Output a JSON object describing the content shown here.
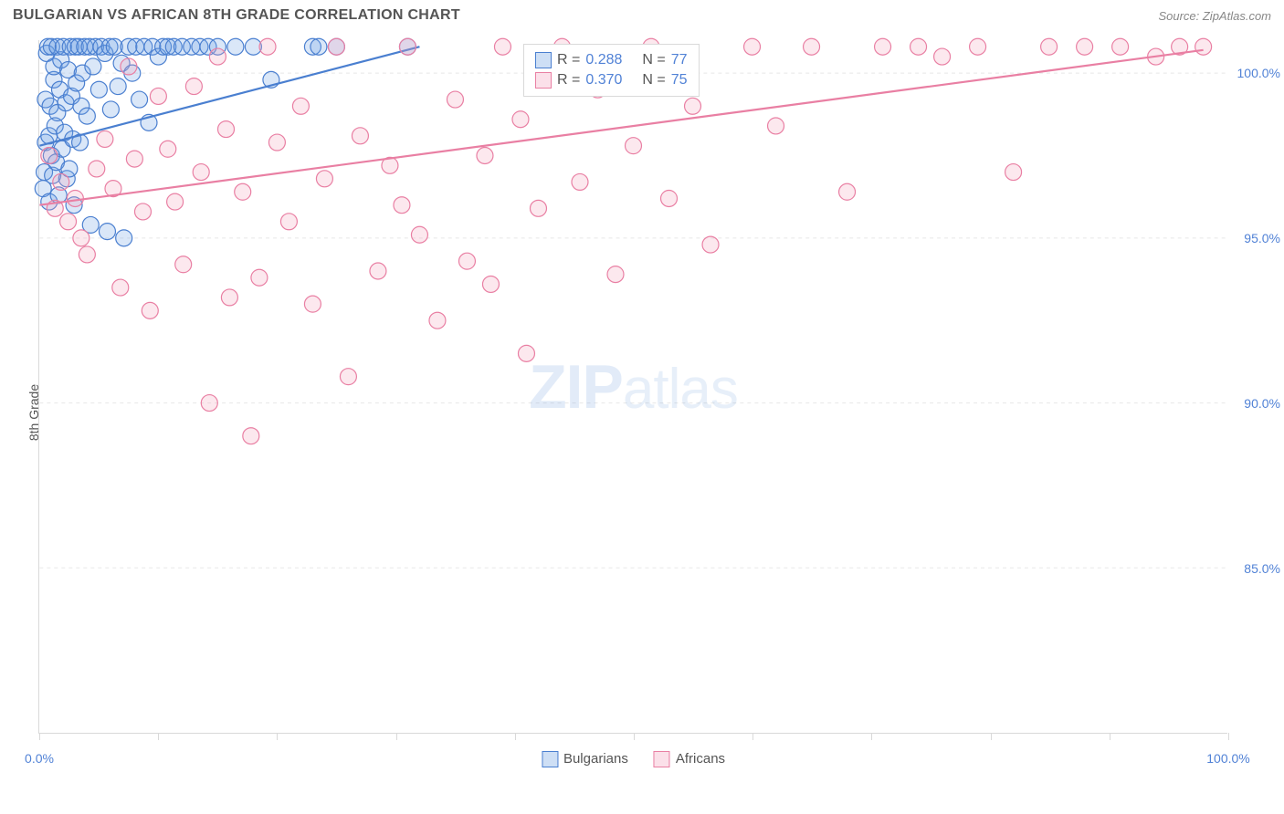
{
  "header": {
    "title": "BULGARIAN VS AFRICAN 8TH GRADE CORRELATION CHART",
    "source": "Source: ZipAtlas.com"
  },
  "watermark": {
    "zip": "ZIP",
    "atlas": "atlas"
  },
  "y_axis_label": "8th Grade",
  "chart": {
    "type": "scatter",
    "xlim": [
      0,
      100
    ],
    "ylim": [
      80,
      101
    ],
    "x_ticks": [
      0,
      10,
      20,
      30,
      40,
      50,
      60,
      70,
      80,
      90,
      100
    ],
    "x_tick_labels_shown": {
      "0": "0.0%",
      "100": "100.0%"
    },
    "y_ticks": [
      85,
      90,
      95,
      100
    ],
    "y_tick_labels": {
      "85": "85.0%",
      "90": "90.0%",
      "95": "95.0%",
      "100": "100.0%"
    },
    "grid_color": "#e8e8e8",
    "grid_dash": "4,4",
    "background_color": "#ffffff",
    "marker_radius": 9,
    "marker_stroke_width": 1.2,
    "marker_fill_opacity": 0.25,
    "line_width": 2.2
  },
  "series": [
    {
      "id": "bulgarians",
      "label": "Bulgarians",
      "color_stroke": "#4a7fd0",
      "color_fill": "#6b9fe2",
      "R": "0.288",
      "N": "77",
      "trend": {
        "x1": 0,
        "y1": 97.8,
        "x2": 32,
        "y2": 100.8
      },
      "points": [
        [
          0.3,
          96.5
        ],
        [
          0.4,
          97.0
        ],
        [
          0.5,
          97.9
        ],
        [
          0.5,
          99.2
        ],
        [
          0.6,
          100.6
        ],
        [
          0.7,
          100.8
        ],
        [
          0.8,
          96.1
        ],
        [
          0.8,
          98.1
        ],
        [
          0.9,
          99.0
        ],
        [
          1.0,
          100.8
        ],
        [
          1.0,
          97.5
        ],
        [
          1.1,
          96.9
        ],
        [
          1.2,
          99.8
        ],
        [
          1.2,
          100.2
        ],
        [
          1.3,
          98.4
        ],
        [
          1.4,
          97.3
        ],
        [
          1.5,
          100.8
        ],
        [
          1.5,
          98.8
        ],
        [
          1.6,
          96.3
        ],
        [
          1.7,
          99.5
        ],
        [
          1.8,
          100.4
        ],
        [
          1.9,
          97.7
        ],
        [
          2.0,
          100.8
        ],
        [
          2.1,
          98.2
        ],
        [
          2.2,
          99.1
        ],
        [
          2.3,
          96.8
        ],
        [
          2.4,
          100.1
        ],
        [
          2.5,
          97.1
        ],
        [
          2.6,
          100.8
        ],
        [
          2.7,
          99.3
        ],
        [
          2.8,
          98.0
        ],
        [
          2.9,
          96.0
        ],
        [
          3.0,
          100.8
        ],
        [
          3.1,
          99.7
        ],
        [
          3.3,
          100.8
        ],
        [
          3.4,
          97.9
        ],
        [
          3.5,
          99.0
        ],
        [
          3.6,
          100.0
        ],
        [
          3.8,
          100.8
        ],
        [
          4.0,
          98.7
        ],
        [
          4.2,
          100.8
        ],
        [
          4.3,
          95.4
        ],
        [
          4.5,
          100.2
        ],
        [
          4.7,
          100.8
        ],
        [
          5.0,
          99.5
        ],
        [
          5.2,
          100.8
        ],
        [
          5.5,
          100.6
        ],
        [
          5.7,
          95.2
        ],
        [
          5.9,
          100.8
        ],
        [
          6.0,
          98.9
        ],
        [
          6.3,
          100.8
        ],
        [
          6.6,
          99.6
        ],
        [
          6.9,
          100.3
        ],
        [
          7.1,
          95.0
        ],
        [
          7.5,
          100.8
        ],
        [
          7.8,
          100.0
        ],
        [
          8.1,
          100.8
        ],
        [
          8.4,
          99.2
        ],
        [
          8.8,
          100.8
        ],
        [
          9.2,
          98.5
        ],
        [
          9.5,
          100.8
        ],
        [
          10.0,
          100.5
        ],
        [
          10.4,
          100.8
        ],
        [
          10.8,
          100.8
        ],
        [
          11.3,
          100.8
        ],
        [
          12.0,
          100.8
        ],
        [
          12.8,
          100.8
        ],
        [
          13.5,
          100.8
        ],
        [
          14.2,
          100.8
        ],
        [
          15.0,
          100.8
        ],
        [
          16.5,
          100.8
        ],
        [
          18.0,
          100.8
        ],
        [
          19.5,
          99.8
        ],
        [
          23.0,
          100.8
        ],
        [
          23.5,
          100.8
        ],
        [
          25.0,
          100.8
        ],
        [
          31.0,
          100.8
        ]
      ]
    },
    {
      "id": "africans",
      "label": "Africans",
      "color_stroke": "#e97fa3",
      "color_fill": "#f3a3bc",
      "R": "0.370",
      "N": "75",
      "trend": {
        "x1": 0,
        "y1": 96.0,
        "x2": 98,
        "y2": 100.7
      },
      "points": [
        [
          0.8,
          97.5
        ],
        [
          1.3,
          95.9
        ],
        [
          1.8,
          96.7
        ],
        [
          2.4,
          95.5
        ],
        [
          3.0,
          96.2
        ],
        [
          3.5,
          95.0
        ],
        [
          4.0,
          94.5
        ],
        [
          4.8,
          97.1
        ],
        [
          5.5,
          98.0
        ],
        [
          6.2,
          96.5
        ],
        [
          6.8,
          93.5
        ],
        [
          7.5,
          100.2
        ],
        [
          8.0,
          97.4
        ],
        [
          8.7,
          95.8
        ],
        [
          9.3,
          92.8
        ],
        [
          10.0,
          99.3
        ],
        [
          10.8,
          97.7
        ],
        [
          11.4,
          96.1
        ],
        [
          12.1,
          94.2
        ],
        [
          13.0,
          99.6
        ],
        [
          13.6,
          97.0
        ],
        [
          14.3,
          90.0
        ],
        [
          15.0,
          100.5
        ],
        [
          15.7,
          98.3
        ],
        [
          16.0,
          93.2
        ],
        [
          17.1,
          96.4
        ],
        [
          17.8,
          89.0
        ],
        [
          18.5,
          93.8
        ],
        [
          19.2,
          100.8
        ],
        [
          20.0,
          97.9
        ],
        [
          21.0,
          95.5
        ],
        [
          22.0,
          99.0
        ],
        [
          23.0,
          93.0
        ],
        [
          24.0,
          96.8
        ],
        [
          25.0,
          100.8
        ],
        [
          26.0,
          90.8
        ],
        [
          27.0,
          98.1
        ],
        [
          28.5,
          94.0
        ],
        [
          29.5,
          97.2
        ],
        [
          30.5,
          96.0
        ],
        [
          31.0,
          100.8
        ],
        [
          32.0,
          95.1
        ],
        [
          33.5,
          92.5
        ],
        [
          35.0,
          99.2
        ],
        [
          36.0,
          94.3
        ],
        [
          37.5,
          97.5
        ],
        [
          38.0,
          93.6
        ],
        [
          39.0,
          100.8
        ],
        [
          40.5,
          98.6
        ],
        [
          41.0,
          91.5
        ],
        [
          42.0,
          95.9
        ],
        [
          44.0,
          100.8
        ],
        [
          45.5,
          96.7
        ],
        [
          47.0,
          99.5
        ],
        [
          48.5,
          93.9
        ],
        [
          50.0,
          97.8
        ],
        [
          51.5,
          100.8
        ],
        [
          53.0,
          96.2
        ],
        [
          55.0,
          99.0
        ],
        [
          56.5,
          94.8
        ],
        [
          60.0,
          100.8
        ],
        [
          62.0,
          98.4
        ],
        [
          65.0,
          100.8
        ],
        [
          68.0,
          96.4
        ],
        [
          71.0,
          100.8
        ],
        [
          74.0,
          100.8
        ],
        [
          76.0,
          100.5
        ],
        [
          79.0,
          100.8
        ],
        [
          82.0,
          97.0
        ],
        [
          85.0,
          100.8
        ],
        [
          88.0,
          100.8
        ],
        [
          91.0,
          100.8
        ],
        [
          94.0,
          100.5
        ],
        [
          96.0,
          100.8
        ],
        [
          98.0,
          100.8
        ]
      ]
    }
  ],
  "legend_top": {
    "rows": [
      {
        "swatch": 0,
        "text_r": "R =",
        "val_r": "0.288",
        "text_n": "N =",
        "val_n": "77"
      },
      {
        "swatch": 1,
        "text_r": "R =",
        "val_r": "0.370",
        "text_n": "N =",
        "val_n": "75"
      }
    ]
  },
  "legend_bottom": [
    {
      "swatch": 0,
      "label": "Bulgarians"
    },
    {
      "swatch": 1,
      "label": "Africans"
    }
  ]
}
